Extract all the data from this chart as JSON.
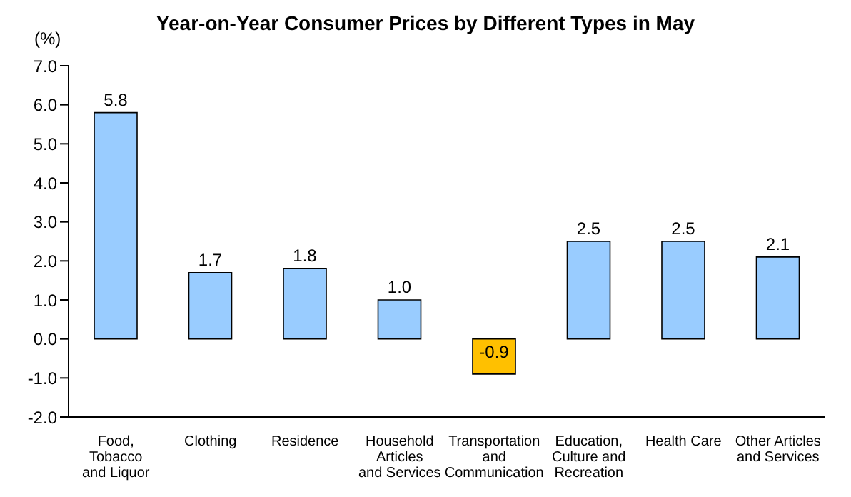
{
  "chart_data": {
    "type": "bar",
    "title": "Year-on-Year Consumer Prices by Different Types in May",
    "ylabel": "(%)",
    "categories": [
      "Food,\nTobacco\nand Liquor",
      "Clothing",
      "Residence",
      "Household\nArticles\nand Services",
      "Transportation\nand\nCommunication",
      "Education,\nCulture and\nRecreation",
      "Health Care",
      "Other Articles\nand Services"
    ],
    "values": [
      5.8,
      1.7,
      1.8,
      1.0,
      -0.9,
      2.5,
      2.5,
      2.1
    ],
    "value_labels": [
      "5.8",
      "1.7",
      "1.8",
      "1.0",
      "-0.9",
      "2.5",
      "2.5",
      "2.1"
    ],
    "colors": [
      "#99ccff",
      "#99ccff",
      "#99ccff",
      "#99ccff",
      "#ffc000",
      "#99ccff",
      "#99ccff",
      "#99ccff"
    ],
    "ylim": [
      -2,
      7
    ],
    "yticks": [
      {
        "value": -2,
        "label": "-2.0"
      },
      {
        "value": -1,
        "label": "-1.0"
      },
      {
        "value": 0,
        "label": "0.0"
      },
      {
        "value": 1,
        "label": "1.0"
      },
      {
        "value": 2,
        "label": "2.0"
      },
      {
        "value": 3,
        "label": "3.0"
      },
      {
        "value": 4,
        "label": "4.0"
      },
      {
        "value": 5,
        "label": "5.0"
      },
      {
        "value": 6,
        "label": "6.0"
      },
      {
        "value": 7,
        "label": "7.0"
      }
    ],
    "grid": false,
    "legend": false
  }
}
